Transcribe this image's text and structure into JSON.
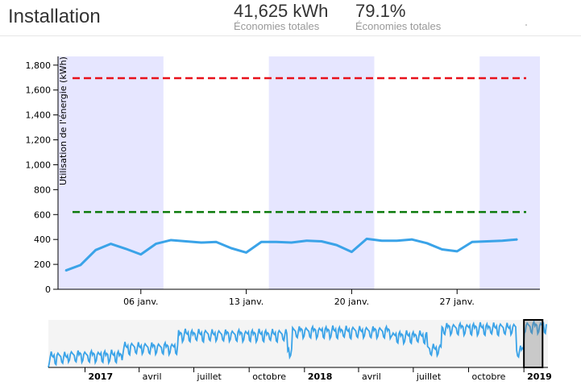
{
  "header": {
    "title": "Installation",
    "metrics": [
      {
        "value": "41,625 kWh",
        "label": "Économies totales"
      },
      {
        "value": "79.1%",
        "label": "Économies totales"
      }
    ]
  },
  "chart_data": [
    {
      "type": "line",
      "title": "",
      "xlabel": "",
      "ylabel": "Utilisation de l'énergie (kWh)",
      "ylim": [
        0,
        1870
      ],
      "yticks": [
        0,
        200,
        400,
        600,
        800,
        1000,
        1200,
        1400,
        1600,
        1800
      ],
      "ytick_labels": [
        "0",
        "200",
        "400",
        "600",
        "800",
        "1,000",
        "1,200",
        "1,400",
        "1,600",
        "1,800"
      ],
      "x": [
        "2019-01-01",
        "2019-01-02",
        "2019-01-03",
        "2019-01-04",
        "2019-01-05",
        "2019-01-06",
        "2019-01-07",
        "2019-01-08",
        "2019-01-09",
        "2019-01-10",
        "2019-01-11",
        "2019-01-12",
        "2019-01-13",
        "2019-01-14",
        "2019-01-15",
        "2019-01-16",
        "2019-01-17",
        "2019-01-18",
        "2019-01-19",
        "2019-01-20",
        "2019-01-21",
        "2019-01-22",
        "2019-01-23",
        "2019-01-24",
        "2019-01-25",
        "2019-01-26",
        "2019-01-27",
        "2019-01-28",
        "2019-01-29",
        "2019-01-30",
        "2019-01-31"
      ],
      "xlim": [
        "2018-12-31T12:00",
        "2019-02-01T12:00"
      ],
      "xticks": [
        {
          "date": "2019-01-06",
          "label": "06 janv."
        },
        {
          "date": "2019-01-13",
          "label": "13 janv."
        },
        {
          "date": "2019-01-20",
          "label": "20 janv."
        },
        {
          "date": "2019-01-27",
          "label": "27 janv."
        }
      ],
      "series": [
        {
          "values": [
            150,
            195,
            315,
            365,
            325,
            280,
            365,
            395,
            385,
            375,
            380,
            330,
            295,
            380,
            380,
            375,
            390,
            385,
            355,
            300,
            405,
            390,
            390,
            400,
            370,
            320,
            305,
            380,
            385,
            390,
            400
          ],
          "color": "#3aa3e8"
        }
      ],
      "reference_lines": [
        {
          "value": 1695,
          "color": "#e8111b",
          "style": "dashed"
        },
        {
          "value": 620,
          "color": "#0b7a0b",
          "style": "dashed"
        }
      ],
      "shaded_ranges": [
        [
          "2018-12-31T12:00",
          "2019-01-07T12:00"
        ],
        [
          "2019-01-14T12:00",
          "2019-01-21T12:00"
        ],
        [
          "2019-01-28T12:00",
          "2019-02-01T12:00"
        ]
      ],
      "shade_color": "#e6e6ff",
      "grid": false,
      "legend": "none"
    },
    {
      "type": "area",
      "title": "",
      "xlim": [
        "2016-11-01",
        "2019-02-10"
      ],
      "xticks": [
        {
          "date": "2017-01-01",
          "label": "2017",
          "bold": true
        },
        {
          "date": "2017-04-01",
          "label": "avril"
        },
        {
          "date": "2017-07-01",
          "label": "juillet"
        },
        {
          "date": "2017-10-01",
          "label": "octobre"
        },
        {
          "date": "2018-01-01",
          "label": "2018",
          "bold": true
        },
        {
          "date": "2018-04-01",
          "label": "avril"
        },
        {
          "date": "2018-07-01",
          "label": "juillet"
        },
        {
          "date": "2018-10-01",
          "label": "octobre"
        },
        {
          "date": "2019-01-01",
          "label": "2019",
          "bold": true
        }
      ],
      "brush_range": [
        "2019-01-01",
        "2019-02-01"
      ],
      "color": "#3aa3e8",
      "background": "#f4f4f4"
    }
  ]
}
